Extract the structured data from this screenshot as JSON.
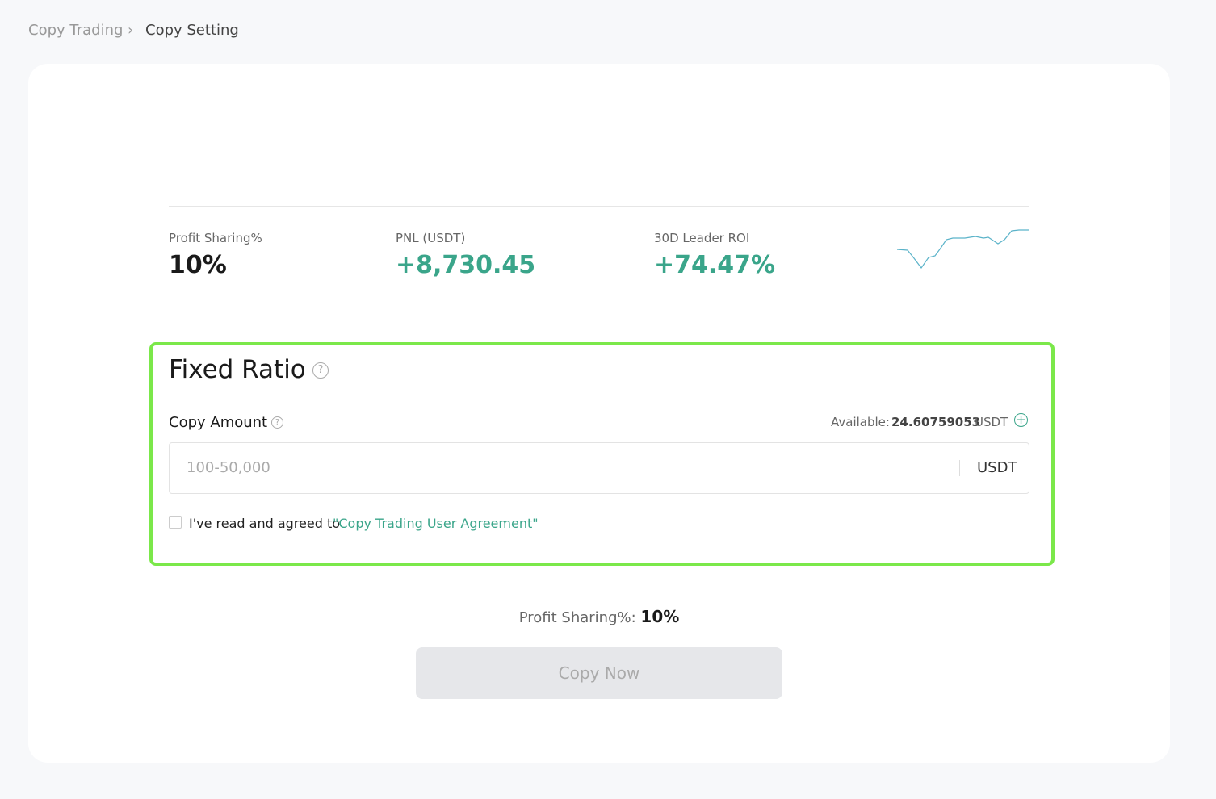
{
  "breadcrumb": {
    "items": [
      "Copy Trading",
      "Copy Setting"
    ]
  },
  "stats": [
    {
      "label": "Profit Sharing%",
      "value": "10%"
    },
    {
      "label": "PNL (USDT)",
      "value": "+8,730.45"
    },
    {
      "label": "30D Leader ROI",
      "value": "+74.47%"
    }
  ],
  "form": {
    "title": "Fixed Ratio",
    "amount_label": "Copy Amount",
    "available_label": "Available:",
    "available_value": "24.60759053",
    "available_unit": "USDT",
    "input_placeholder": "100-50,000",
    "input_unit": "USDT",
    "agreement_text": "I've read and agreed to",
    "agreement_link": "\"Copy Trading User Agreement\""
  },
  "summary": {
    "label": "Profit Sharing%:",
    "value": "10%"
  },
  "button": {
    "label": "Copy Now"
  }
}
